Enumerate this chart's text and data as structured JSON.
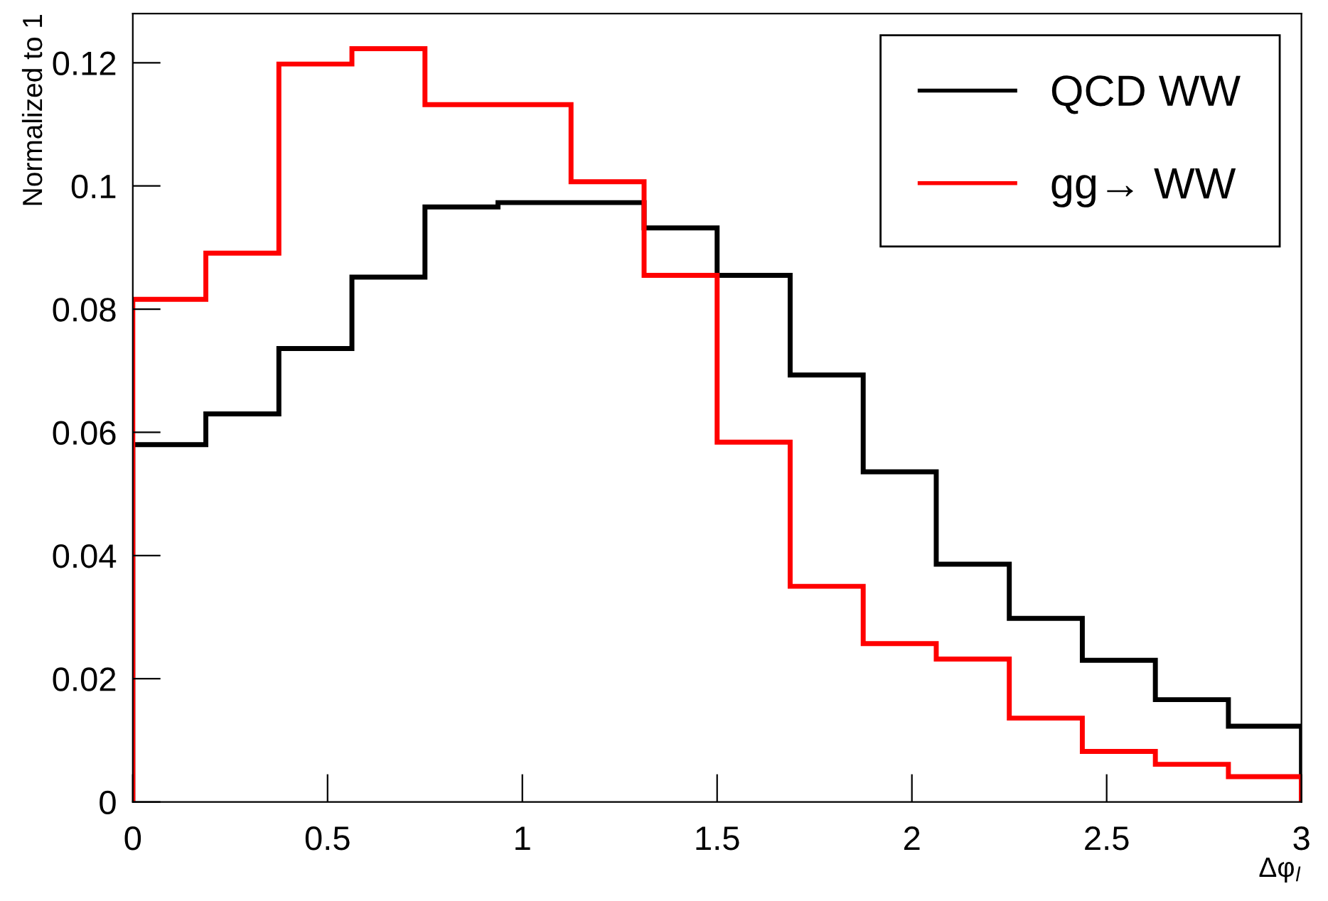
{
  "chart_data": {
    "type": "histogram",
    "xlabel": "Δφ$_{l}$",
    "ylabel": "Normalized to 1",
    "bins": [
      0,
      0.1875,
      0.375,
      0.5625,
      0.75,
      0.9375,
      1.125,
      1.3125,
      1.5,
      1.6875,
      1.875,
      2.0625,
      2.25,
      2.4375,
      2.625,
      2.8125,
      3.0
    ],
    "series": [
      {
        "name": "QCD WW",
        "color": "#000000",
        "values": [
          0.058,
          0.063,
          0.0736,
          0.0852,
          0.0966,
          0.0973,
          0.0973,
          0.0932,
          0.0855,
          0.0693,
          0.0536,
          0.0386,
          0.0298,
          0.023,
          0.0166,
          0.0123
        ]
      },
      {
        "name": "gg→ WW",
        "color": "#ff0000",
        "values": [
          0.0816,
          0.0891,
          0.1198,
          0.1223,
          0.1132,
          0.1132,
          0.1007,
          0.0855,
          0.0584,
          0.035,
          0.0257,
          0.0232,
          0.0136,
          0.0082,
          0.0061,
          0.0041
        ]
      }
    ],
    "xlim": [
      0,
      3
    ],
    "ylim": [
      0,
      0.128
    ],
    "xticks": [
      0,
      0.5,
      1,
      1.5,
      2,
      2.5,
      3
    ],
    "yticks": [
      0,
      0.02,
      0.04,
      0.06,
      0.08,
      0.1,
      0.12
    ],
    "legend": "top right",
    "grid": false
  }
}
